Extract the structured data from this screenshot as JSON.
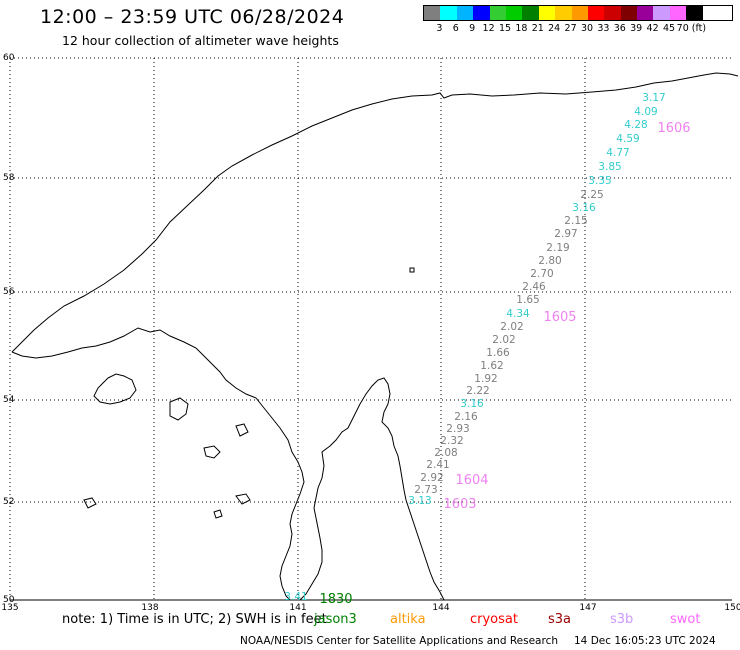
{
  "header": {
    "title": "12:00 – 23:59 UTC 06/28/2024",
    "subtitle": "12 hour collection of altimeter wave heights"
  },
  "color_scale": {
    "colors": [
      "#7f7f7f",
      "#00ffff",
      "#00b4ff",
      "#0000ff",
      "#33cc33",
      "#00cc00",
      "#007f00",
      "#ffff00",
      "#ffcc00",
      "#ff9900",
      "#ff0000",
      "#cc0000",
      "#7f0000",
      "#990099",
      "#cc99ff",
      "#ff66ff",
      "#000000"
    ],
    "labels": [
      "3",
      "6",
      "9",
      "12",
      "15",
      "18",
      "21",
      "24",
      "27",
      "30",
      "33",
      "36",
      "39",
      "42",
      "45",
      "70 (ft)"
    ]
  },
  "map": {
    "lat_labels": [
      "60",
      "58",
      "56",
      "54",
      "52",
      "50"
    ],
    "lon_labels": [
      "135",
      "138",
      "141",
      "144",
      "147",
      "150"
    ],
    "observations": [
      {
        "text": "3.17",
        "color": "#33cccc"
      },
      {
        "text": "4.09",
        "color": "#33cccc"
      },
      {
        "text": "4.28",
        "color": "#33cccc"
      },
      {
        "text": "4.59",
        "color": "#33cccc"
      },
      {
        "text": "4.77",
        "color": "#33cccc"
      },
      {
        "text": "3.85",
        "color": "#33cccc"
      },
      {
        "text": "3.35",
        "color": "#33cccc"
      },
      {
        "text": "2.25",
        "color": "#7f7f7f"
      },
      {
        "text": "3.16",
        "color": "#33cccc"
      },
      {
        "text": "2.15",
        "color": "#7f7f7f"
      },
      {
        "text": "2.97",
        "color": "#7f7f7f"
      },
      {
        "text": "2.19",
        "color": "#7f7f7f"
      },
      {
        "text": "2.80",
        "color": "#7f7f7f"
      },
      {
        "text": "2.70",
        "color": "#7f7f7f"
      },
      {
        "text": "2.46",
        "color": "#7f7f7f"
      },
      {
        "text": "1.65",
        "color": "#7f7f7f"
      },
      {
        "text": "4.34",
        "color": "#33cccc"
      },
      {
        "text": "2.02",
        "color": "#7f7f7f"
      },
      {
        "text": "2.02",
        "color": "#7f7f7f"
      },
      {
        "text": "1.66",
        "color": "#7f7f7f"
      },
      {
        "text": "1.62",
        "color": "#7f7f7f"
      },
      {
        "text": "1.92",
        "color": "#7f7f7f"
      },
      {
        "text": "2.22",
        "color": "#7f7f7f"
      },
      {
        "text": "3.16",
        "color": "#33cccc"
      },
      {
        "text": "2.16",
        "color": "#7f7f7f"
      },
      {
        "text": "2.93",
        "color": "#7f7f7f"
      },
      {
        "text": "2.32",
        "color": "#7f7f7f"
      },
      {
        "text": "2.08",
        "color": "#7f7f7f"
      },
      {
        "text": "2.41",
        "color": "#7f7f7f"
      },
      {
        "text": "2.92",
        "color": "#7f7f7f"
      },
      {
        "text": "2.73",
        "color": "#7f7f7f"
      },
      {
        "text": "3.13",
        "color": "#33cccc"
      },
      {
        "text": "3.41",
        "color": "#33cccc"
      }
    ],
    "pass_times": [
      {
        "text": "1606",
        "color": "#ee82ee"
      },
      {
        "text": "1605",
        "color": "#ee82ee"
      },
      {
        "text": "1604",
        "color": "#ee82ee"
      },
      {
        "text": "1603",
        "color": "#ee82ee"
      },
      {
        "text": "1830",
        "color": "#007f00"
      }
    ]
  },
  "footer": {
    "note": "note:  1) Time is in UTC;  2) SWH is in feet",
    "satellites": [
      {
        "name": "jason3",
        "color": "#007f00"
      },
      {
        "name": "altika",
        "color": "#ff9900"
      },
      {
        "name": "cryosat",
        "color": "#ff0000"
      },
      {
        "name": "s3a",
        "color": "#990000"
      },
      {
        "name": "s3b",
        "color": "#cc99ff"
      },
      {
        "name": "swot",
        "color": "#ff66ff"
      }
    ],
    "credit": "NOAA/NESDIS Center for Satellite Applications and Research",
    "timestamp": "14 Dec 16:05:23 UTC 2024"
  }
}
